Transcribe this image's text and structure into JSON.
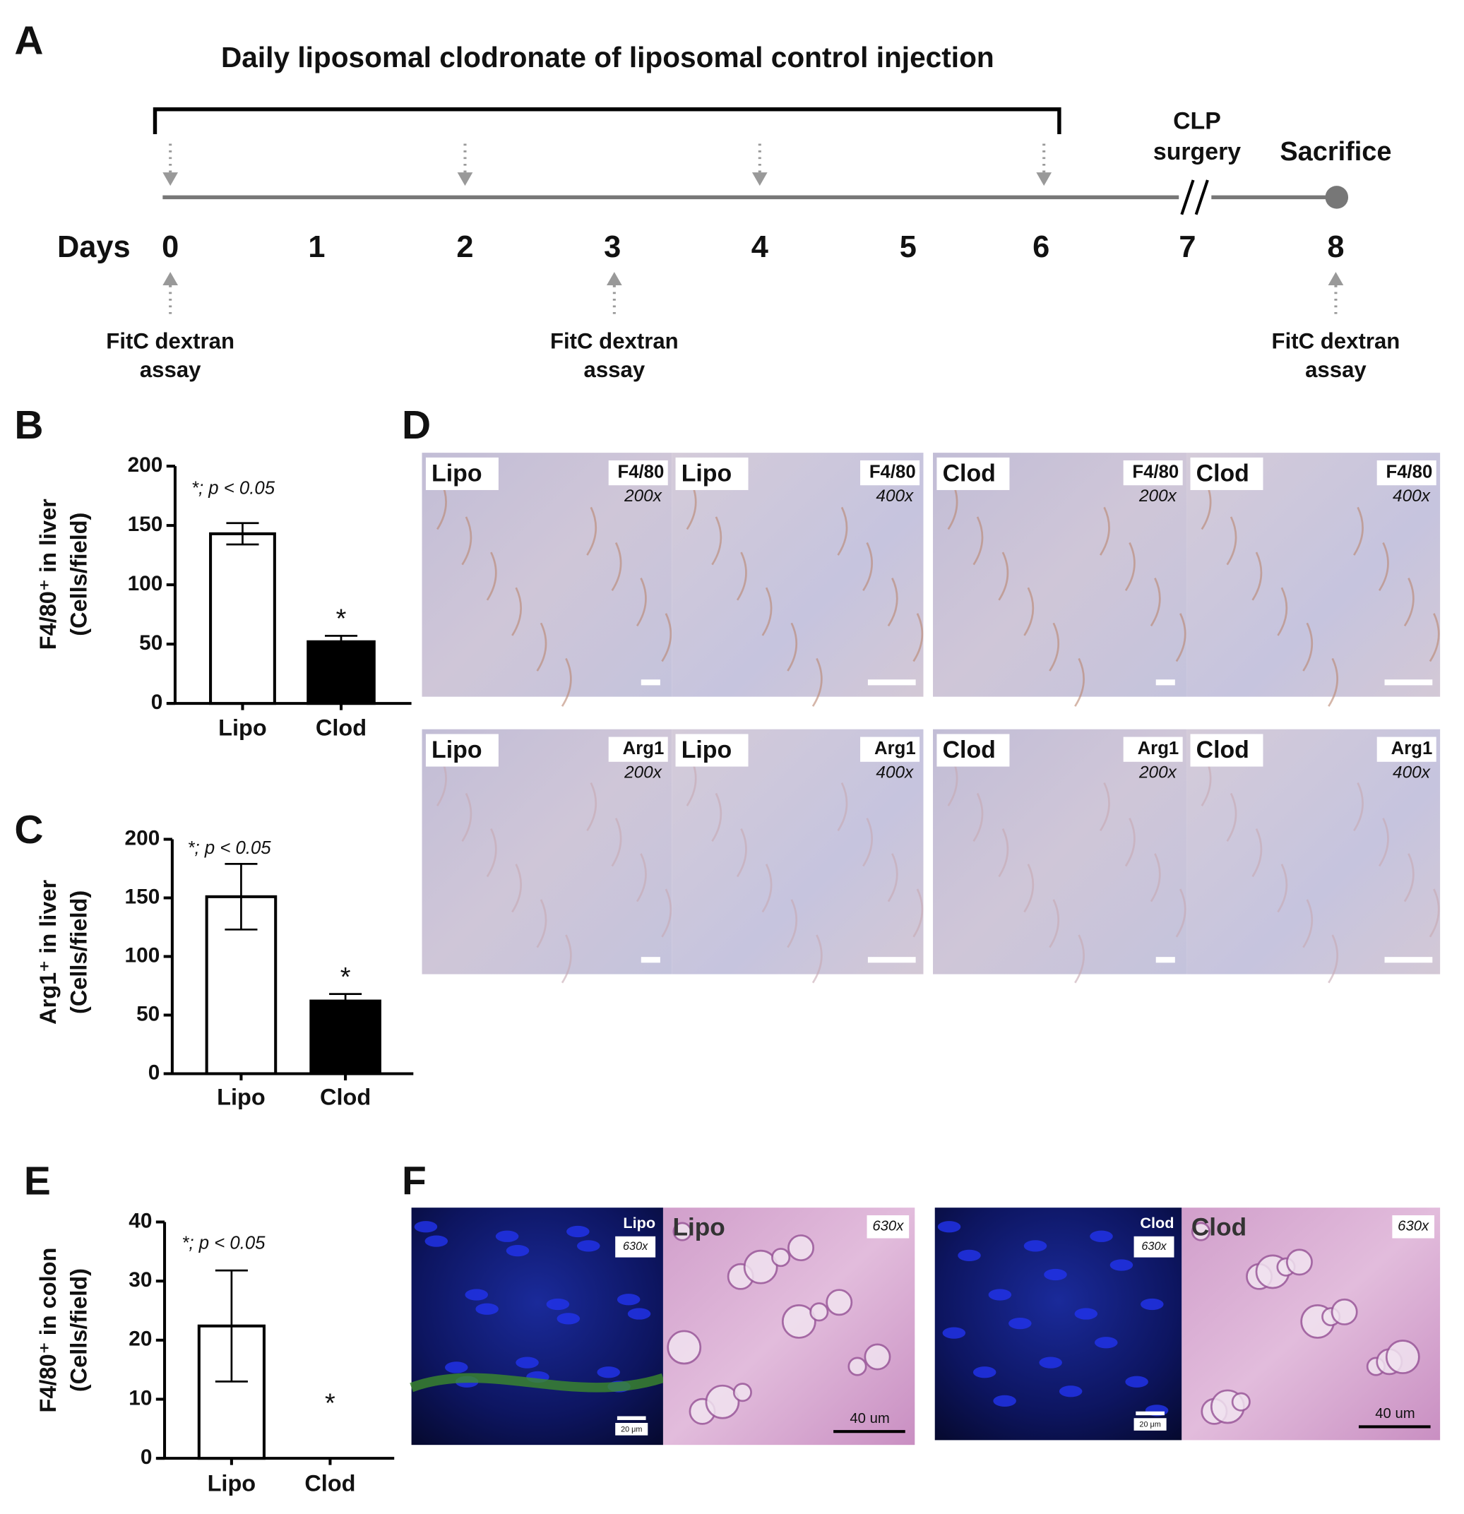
{
  "panel_labels": [
    "A",
    "B",
    "C",
    "D",
    "E",
    "F"
  ],
  "timeline": {
    "title": "Daily liposomal clodronate of liposomal control injection",
    "days_label": "Days",
    "days": [
      0,
      1,
      2,
      3,
      4,
      5,
      6,
      7,
      8
    ],
    "clp": [
      "CLP",
      "surgery"
    ],
    "sacrifice": "Sacrifice",
    "assays": [
      [
        "FitC dextran",
        "assay"
      ],
      [
        "FitC dextran",
        "assay"
      ],
      [
        "FitC dextran",
        "assay"
      ]
    ]
  },
  "chart_data": [
    {
      "type": "bar",
      "y_label": [
        "F4/80⁺ in liver",
        "(Cells/field)"
      ],
      "categories": [
        "Lipo",
        "Clod"
      ],
      "values": [
        143,
        52
      ],
      "errors": [
        9,
        5
      ],
      "colors": [
        "#ffffff",
        "#000000"
      ],
      "ylim": [
        0,
        200
      ],
      "yticks": [
        0,
        50,
        100,
        150,
        200
      ],
      "annotation": "*; p < 0.05",
      "significance": [
        null,
        "*"
      ]
    },
    {
      "type": "bar",
      "y_label": [
        "Arg1⁺ in liver",
        "(Cells/field)"
      ],
      "categories": [
        "Lipo",
        "Clod"
      ],
      "values": [
        151,
        62
      ],
      "errors": [
        28,
        6
      ],
      "colors": [
        "#ffffff",
        "#000000"
      ],
      "ylim": [
        0,
        200
      ],
      "yticks": [
        0,
        50,
        100,
        150,
        200
      ],
      "annotation": "*; p < 0.05",
      "significance": [
        null,
        "*"
      ]
    },
    {
      "type": "bar",
      "y_label": [
        "F4/80⁺ in colon",
        "(Cells/field)"
      ],
      "categories": [
        "Lipo",
        "Clod"
      ],
      "values": [
        22.4,
        0
      ],
      "errors": [
        9.4,
        0
      ],
      "colors": [
        "#ffffff",
        "#000000"
      ],
      "ylim": [
        0,
        40
      ],
      "yticks": [
        0,
        10,
        20,
        30,
        40
      ],
      "annotation": "*; p < 0.05",
      "significance": [
        null,
        "*"
      ]
    }
  ],
  "micrographs": {
    "D": [
      [
        {
          "type": "ihc",
          "group": "Lipo",
          "stain": "F4/80",
          "magnification": "200x"
        },
        {
          "type": "ihc",
          "group": "Lipo",
          "stain": "F4/80",
          "magnification": "400x"
        },
        {
          "type": "ihc",
          "group": "Clod",
          "stain": "F4/80",
          "magnification": "200x"
        },
        {
          "type": "ihc",
          "group": "Clod",
          "stain": "F4/80",
          "magnification": "400x"
        }
      ],
      [
        {
          "type": "ihc",
          "group": "Lipo",
          "stain": "Arg1",
          "magnification": "200x"
        },
        {
          "type": "ihc",
          "group": "Lipo",
          "stain": "Arg1",
          "magnification": "400x"
        },
        {
          "type": "ihc",
          "group": "Clod",
          "stain": "Arg1",
          "magnification": "200x"
        },
        {
          "type": "ihc",
          "group": "Clod",
          "stain": "Arg1",
          "magnification": "400x"
        }
      ]
    ],
    "F": [
      {
        "type": "fluorescence",
        "group": "Lipo",
        "magnification": "630x",
        "scale": "20 μm"
      },
      {
        "type": "he",
        "group": "Lipo",
        "magnification": "630x",
        "scale": "40 um"
      },
      {
        "type": "fluorescence",
        "group": "Clod",
        "magnification": "630x",
        "scale": "20 μm"
      },
      {
        "type": "he",
        "group": "Clod",
        "magnification": "630x",
        "scale": "40 um"
      }
    ]
  }
}
